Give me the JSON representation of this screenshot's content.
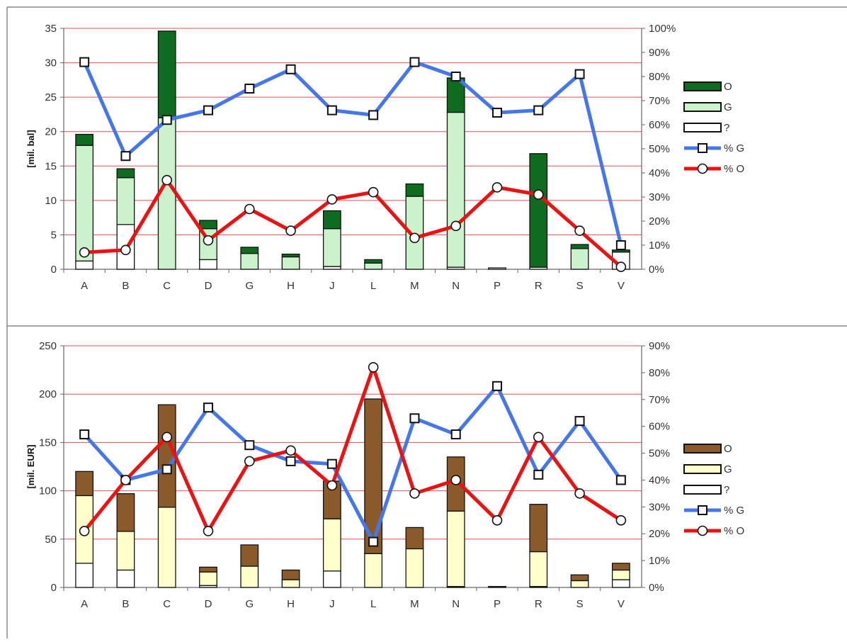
{
  "chart_data": [
    {
      "type": "bar",
      "stacked": true,
      "ylabel": "[mil. bal]",
      "ylim": [
        0,
        35
      ],
      "y_ticks": [
        "0",
        "5",
        "10",
        "15",
        "20",
        "25",
        "30",
        "35"
      ],
      "y2lim": [
        0,
        100
      ],
      "y2_ticks": [
        "0%",
        "10%",
        "20%",
        "30%",
        "40%",
        "50%",
        "60%",
        "70%",
        "80%",
        "90%",
        "100%"
      ],
      "categories": [
        "A",
        "B",
        "C",
        "D",
        "G",
        "H",
        "J",
        "L",
        "M",
        "N",
        "P",
        "R",
        "S",
        "V"
      ],
      "series": [
        {
          "name": "?",
          "kind": "bar",
          "color": "#ffffff",
          "values": [
            1.2,
            6.5,
            0,
            1.4,
            0,
            0,
            0.4,
            0,
            0,
            0.3,
            0.2,
            0.3,
            0,
            2.5
          ]
        },
        {
          "name": "G",
          "kind": "bar",
          "color": "#ccf2cc",
          "values": [
            16.8,
            6.8,
            22,
            4.5,
            2.3,
            1.8,
            5.5,
            0.9,
            10.6,
            22.5,
            0,
            0,
            3.0,
            0
          ]
        },
        {
          "name": "O",
          "kind": "bar",
          "color": "#0f6b1f",
          "values": [
            1.6,
            1.3,
            12.6,
            1.2,
            0.9,
            0.4,
            2.6,
            0.5,
            1.8,
            5.0,
            0,
            16.5,
            0.6,
            0.3
          ]
        },
        {
          "name": "% G",
          "kind": "line",
          "axis": "right",
          "marker": "square",
          "color": "#4477ee",
          "values": [
            86,
            47,
            62,
            66,
            75,
            83,
            66,
            64,
            86,
            80,
            65,
            66,
            81,
            10
          ]
        },
        {
          "name": "% O",
          "kind": "line",
          "axis": "right",
          "marker": "circle",
          "color": "#ee1111",
          "values": [
            7,
            8,
            37,
            12,
            25,
            16,
            29,
            32,
            13,
            18,
            34,
            31,
            16,
            1
          ]
        }
      ],
      "legend": [
        "O",
        "G",
        "?",
        "% G",
        "% O"
      ],
      "legend_position": "right",
      "grid": true
    },
    {
      "type": "bar",
      "stacked": true,
      "ylabel": "[mil. EUR]",
      "ylim": [
        0,
        250
      ],
      "y_ticks": [
        "0",
        "50",
        "100",
        "150",
        "200",
        "250"
      ],
      "y2lim": [
        0,
        90
      ],
      "y2_ticks": [
        "0%",
        "10%",
        "20%",
        "30%",
        "40%",
        "50%",
        "60%",
        "70%",
        "80%",
        "90%"
      ],
      "categories": [
        "A",
        "B",
        "C",
        "D",
        "G",
        "H",
        "J",
        "L",
        "M",
        "N",
        "P",
        "R",
        "S",
        "V"
      ],
      "series": [
        {
          "name": "?",
          "kind": "bar",
          "color": "#ffffff",
          "values": [
            25,
            18,
            0,
            2,
            0,
            0,
            17,
            0,
            0,
            1,
            1,
            1,
            0,
            8
          ]
        },
        {
          "name": "G",
          "kind": "bar",
          "color": "#ffffcc",
          "values": [
            70,
            40,
            83,
            14,
            22,
            8,
            54,
            35,
            40,
            78,
            0,
            36,
            7,
            10
          ]
        },
        {
          "name": "O",
          "kind": "bar",
          "color": "#8b5a2b",
          "values": [
            25,
            39,
            106,
            5,
            22,
            10,
            39,
            160,
            22,
            56,
            0,
            49,
            6,
            7
          ]
        },
        {
          "name": "% G",
          "kind": "line",
          "axis": "right",
          "marker": "square",
          "color": "#4477ee",
          "values": [
            57,
            40,
            44,
            67,
            53,
            47,
            46,
            17,
            63,
            57,
            75,
            42,
            62,
            40
          ]
        },
        {
          "name": "% O",
          "kind": "line",
          "axis": "right",
          "marker": "circle",
          "color": "#ee1111",
          "values": [
            21,
            40,
            56,
            21,
            47,
            51,
            38,
            82,
            35,
            40,
            25,
            56,
            35,
            25
          ]
        }
      ],
      "legend": [
        "O",
        "G",
        "?",
        "% G",
        "% O"
      ],
      "legend_position": "right",
      "grid": true
    }
  ]
}
